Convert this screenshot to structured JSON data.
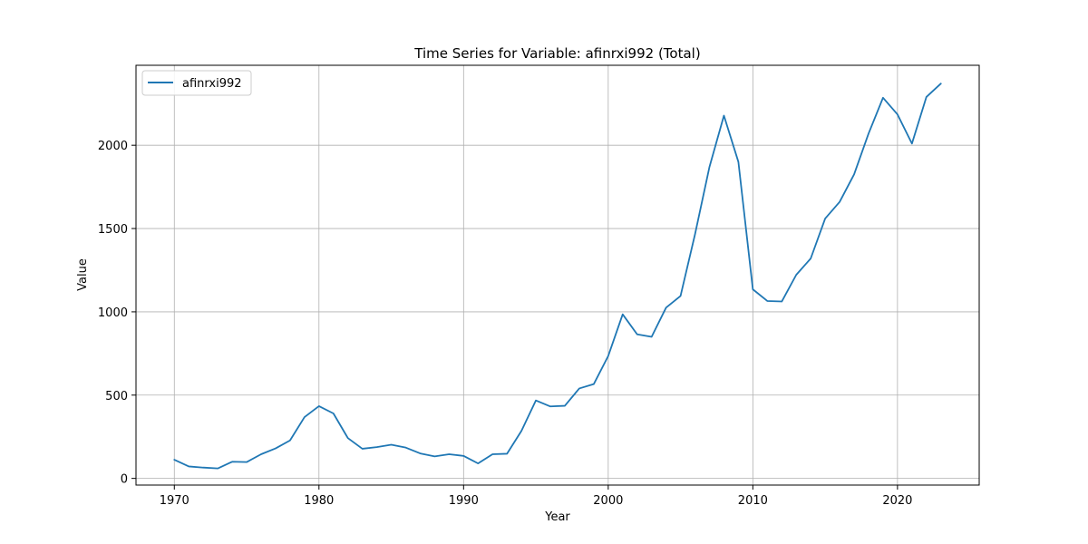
{
  "chart_data": {
    "type": "line",
    "title": "Time Series for Variable: afinrxi992 (Total)",
    "xlabel": "Year",
    "ylabel": "Value",
    "xlim": [
      1967.35,
      2025.65
    ],
    "ylim": [
      -40,
      2480
    ],
    "x_ticks": [
      1970,
      1980,
      1990,
      2000,
      2010,
      2020
    ],
    "y_ticks": [
      0,
      500,
      1000,
      1500,
      2000
    ],
    "grid": true,
    "legend_position": "top-left",
    "series": [
      {
        "name": "afinrxi992",
        "color": "#1f77b4",
        "x": [
          1970,
          1971,
          1972,
          1973,
          1974,
          1975,
          1976,
          1977,
          1978,
          1979,
          1980,
          1981,
          1982,
          1983,
          1984,
          1985,
          1986,
          1987,
          1988,
          1989,
          1990,
          1991,
          1992,
          1993,
          1994,
          1995,
          1996,
          1997,
          1998,
          1999,
          2000,
          2001,
          2002,
          2003,
          2004,
          2005,
          2006,
          2007,
          2008,
          2009,
          2010,
          2011,
          2012,
          2013,
          2014,
          2015,
          2016,
          2017,
          2018,
          2019,
          2020,
          2021,
          2022,
          2023
        ],
        "values": [
          112,
          72,
          65,
          60,
          100,
          98,
          145,
          180,
          228,
          368,
          434,
          390,
          242,
          178,
          188,
          202,
          185,
          150,
          132,
          145,
          135,
          90,
          145,
          148,
          285,
          468,
          432,
          436,
          540,
          566,
          735,
          985,
          865,
          850,
          1025,
          1095,
          1465,
          1870,
          2178,
          1900,
          1135,
          1065,
          1062,
          1222,
          1320,
          1560,
          1660,
          1825,
          2070,
          2285,
          2185,
          2010,
          2290,
          2370
        ]
      }
    ]
  }
}
